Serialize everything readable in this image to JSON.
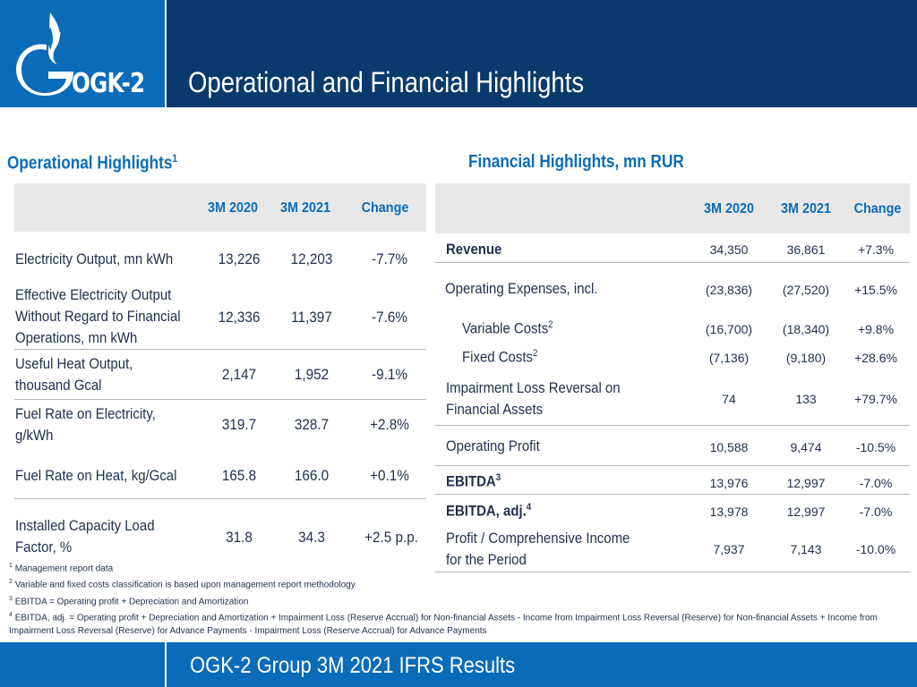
{
  "header": {
    "logo_text": "OGK-2",
    "title": "Operational and Financial Highlights"
  },
  "operational": {
    "title": "Operational Highlights",
    "title_sup": "1",
    "columns": [
      "3M 2020",
      "3M 2021",
      "Change"
    ],
    "rows": [
      {
        "label_lines": [
          "Electricity Output, mn kWh"
        ],
        "v2020": "13,226",
        "v2021": "12,203",
        "change": "-7.7%"
      },
      {
        "label_lines": [
          "Effective Electricity Output",
          "Without Regard to Financial",
          "Operations, mn kWh"
        ],
        "v2020": "12,336",
        "v2021": "11,397",
        "change": "-7.6%"
      },
      {
        "label_lines": [
          "Useful Heat Output,",
          "thousand Gcal"
        ],
        "v2020": "2,147",
        "v2021": "1,952",
        "change": "-9.1%"
      },
      {
        "label_lines": [
          "Fuel Rate on Electricity,",
          "g/kWh"
        ],
        "v2020": "319.7",
        "v2021": "328.7",
        "change": "+2.8%"
      },
      {
        "label_lines": [
          "Fuel Rate on Heat, kg/Gcal"
        ],
        "v2020": "165.8",
        "v2021": "166.0",
        "change": "+0.1%"
      },
      {
        "label_lines": [
          "Installed Capacity Load",
          "Factor, %"
        ],
        "v2020": "31.8",
        "v2021": "34.3",
        "change": "+2.5 p.p."
      }
    ]
  },
  "financial": {
    "title": "Financial Highlights, mn RUR",
    "columns": [
      "3M 2020",
      "3M 2021",
      "Change"
    ],
    "rows": [
      {
        "label": "Revenue",
        "sup": "",
        "v2020": "34,350",
        "v2021": "36,861",
        "change": "+7.3%"
      },
      {
        "label": "Operating Expenses, incl.",
        "sup": "",
        "v2020": "(23,836)",
        "v2021": "(27,520)",
        "change": "+15.5%"
      },
      {
        "label": "Variable Costs",
        "sup": "2",
        "v2020": "(16,700)",
        "v2021": "(18,340)",
        "change": "+9.8%"
      },
      {
        "label": "Fixed Costs",
        "sup": "2",
        "v2020": "(7,136)",
        "v2021": "(9,180)",
        "change": "+28.6%"
      },
      {
        "label_lines": [
          "Impairment Loss Reversal on",
          "Financial Assets"
        ],
        "v2020": "74",
        "v2021": "133",
        "change": "+79.7%"
      },
      {
        "label": "Operating Profit",
        "sup": "",
        "v2020": "10,588",
        "v2021": "9,474",
        "change": "-10.5%"
      },
      {
        "label": "EBITDA",
        "sup": "3",
        "v2020": "13,976",
        "v2021": "12,997",
        "change": "-7.0%"
      },
      {
        "label": "EBITDA, adj.",
        "sup": "4",
        "v2020": "13,978",
        "v2021": "12,997",
        "change": "-7.0%"
      },
      {
        "label_lines": [
          "Profit / Comprehensive Income",
          "for the Period"
        ],
        "v2020": "7,937",
        "v2021": "7,143",
        "change": "-10.0%"
      }
    ]
  },
  "footnotes": [
    {
      "num": "1",
      "text": "Management report data"
    },
    {
      "num": "2",
      "text": "Variable and fixed costs classification is based upon management report methodology"
    },
    {
      "num": "3",
      "text": "EBITDA = Operating profit + Depreciation and Amortization"
    },
    {
      "num": "4",
      "text": "EBITDA, adj. = Operating profit + Depreciation and Amortization + Impairment Loss (Reserve Accrual) for Non-financial Assets - Income from Impairment Loss Reversal (Reserve) for Non-financial Assets + Income from Impairment Loss Reversal (Reserve) for Advance Payments - Impairment Loss (Reserve Accrual) for Advance Payments"
    }
  ],
  "footer": {
    "text": "OGK-2 Group 3M 2021 IFRS Results"
  },
  "colors": {
    "navy": "#0a3a6b",
    "brand_blue": "#0a6cb8"
  },
  "icons": [
    "gazprom-flame-logo-icon"
  ]
}
